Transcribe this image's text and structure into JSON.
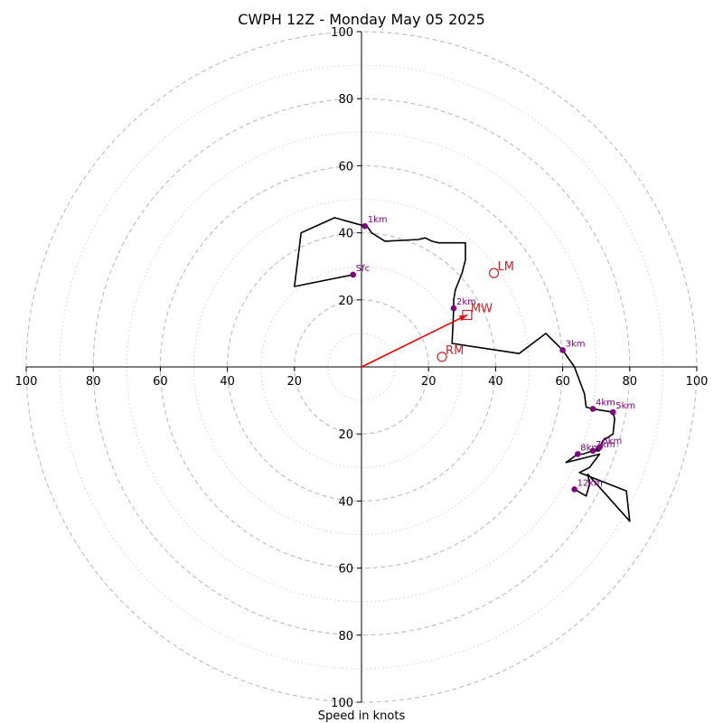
{
  "chart_data": {
    "type": "hodograph",
    "title": "CWPH 12Z - Monday May 05 2025",
    "xlabel": "Speed in knots",
    "xlim": [
      -100,
      100
    ],
    "ylim": [
      -100,
      100
    ],
    "x_tick_labels": [
      "100",
      "80",
      "60",
      "40",
      "20",
      "20",
      "40",
      "60",
      "80",
      "100"
    ],
    "y_tick_labels": [
      "100",
      "80",
      "60",
      "40",
      "20",
      "20",
      "40",
      "60",
      "80",
      "100"
    ],
    "ring_major_speeds": [
      20,
      40,
      60,
      80,
      100
    ],
    "ring_minor_speeds": [
      10,
      30,
      50,
      70,
      90
    ],
    "grid": true,
    "trace": {
      "color": "#000000",
      "points": [
        [
          -2.5,
          27.5
        ],
        [
          -20,
          24
        ],
        [
          -18,
          40
        ],
        [
          -8,
          44.5
        ],
        [
          1,
          42
        ],
        [
          2,
          41.5
        ],
        [
          3,
          40
        ],
        [
          7,
          37.5
        ],
        [
          17,
          38
        ],
        [
          19,
          38.5
        ],
        [
          21,
          37.5
        ],
        [
          23,
          37
        ],
        [
          31,
          37
        ],
        [
          31,
          32
        ],
        [
          30,
          28
        ],
        [
          28,
          23
        ],
        [
          27.5,
          20
        ],
        [
          27.5,
          17.5
        ],
        [
          27,
          7
        ],
        [
          47,
          4
        ],
        [
          55,
          10
        ],
        [
          60,
          5
        ],
        [
          63.5,
          0
        ],
        [
          66.5,
          -8
        ],
        [
          67,
          -12
        ],
        [
          69,
          -12.5
        ],
        [
          75,
          -13.5
        ],
        [
          75.5,
          -15.5
        ],
        [
          75,
          -20
        ],
        [
          72,
          -22
        ],
        [
          71,
          -24
        ],
        [
          70,
          -24.5
        ],
        [
          71,
          -25
        ],
        [
          69,
          -25
        ],
        [
          67.5,
          -25.5
        ],
        [
          66,
          -26
        ],
        [
          64.5,
          -26
        ],
        [
          61,
          -28.5
        ],
        [
          71,
          -26
        ],
        [
          68,
          -30
        ],
        [
          65,
          -31.5
        ],
        [
          79,
          -37
        ],
        [
          80,
          -46
        ],
        [
          67.5,
          -32
        ],
        [
          68,
          -35
        ],
        [
          67,
          -38.5
        ],
        [
          63.5,
          -36.5
        ]
      ]
    },
    "height_markers": {
      "color": "#800080",
      "points": [
        {
          "label": "Sfc",
          "u": -2.5,
          "v": 27.5
        },
        {
          "label": "1km",
          "u": 1,
          "v": 42
        },
        {
          "label": "2km",
          "u": 27.5,
          "v": 17.5
        },
        {
          "label": "3km",
          "u": 60,
          "v": 5
        },
        {
          "label": "4km",
          "u": 69,
          "v": -12.5
        },
        {
          "label": "5km",
          "u": 75,
          "v": -13.5
        },
        {
          "label": "6km",
          "u": 71,
          "v": -24
        },
        {
          "label": "7km",
          "u": 69,
          "v": -25
        },
        {
          "label": "8km",
          "u": 64.5,
          "v": -26
        },
        {
          "label": "12km",
          "u": 63.5,
          "v": -36.5
        }
      ]
    },
    "storm_motion": {
      "color": "#c0282d",
      "points": [
        {
          "label": "LM",
          "u": 39.5,
          "v": 28,
          "marker": "circle"
        },
        {
          "label": "RM",
          "u": 24,
          "v": 3,
          "marker": "circle"
        },
        {
          "label": "MW",
          "u": 31.5,
          "v": 15.5,
          "marker": "square"
        }
      ],
      "vector": {
        "from": [
          0,
          0
        ],
        "to": [
          31.5,
          15.5
        ],
        "color": "#ff0000"
      }
    }
  }
}
